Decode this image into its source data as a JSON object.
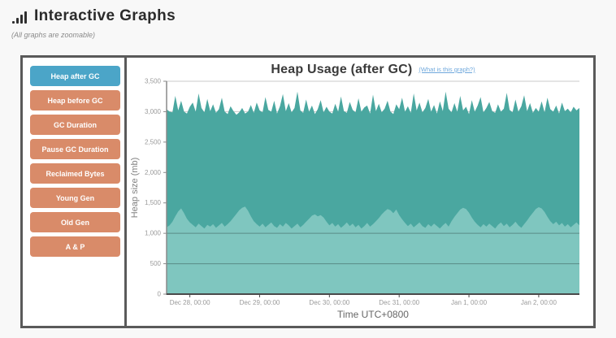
{
  "header": {
    "title": "Interactive Graphs",
    "subtitle": "(All graphs are zoomable)",
    "logo_icon": "bar-chart-icon"
  },
  "sidebar": {
    "buttons": [
      {
        "label": "Heap after GC",
        "active": true
      },
      {
        "label": "Heap before GC",
        "active": false
      },
      {
        "label": "GC Duration",
        "active": false
      },
      {
        "label": "Pause GC Duration",
        "active": false
      },
      {
        "label": "Reclaimed Bytes",
        "active": false
      },
      {
        "label": "Young Gen",
        "active": false
      },
      {
        "label": "Old Gen",
        "active": false
      },
      {
        "label": "A & P",
        "active": false
      }
    ],
    "active_color": "#4ba5c8",
    "inactive_color": "#d98b69"
  },
  "chart_header": {
    "title": "Heap Usage (after GC)",
    "help_link": "(What is this graph?)",
    "link_color": "#6fa8dc"
  },
  "chart_data": {
    "type": "area",
    "title": "Heap Usage (after GC)",
    "xlabel": "Time UTC+0800",
    "ylabel": "Heap size (mb)",
    "ylim": [
      0,
      3500
    ],
    "y_ticks": [
      0,
      500,
      1000,
      1500,
      2000,
      2500,
      3000,
      3500
    ],
    "grid": true,
    "overlay_gridlines": [
      500,
      1000
    ],
    "x_range_hours": [
      -8,
      134
    ],
    "x_ticks": [
      {
        "t": 0,
        "label": "Dec 28, 00:00"
      },
      {
        "t": 24,
        "label": "Dec 29, 00:00"
      },
      {
        "t": 48,
        "label": "Dec 30, 00:00"
      },
      {
        "t": 72,
        "label": "Dec 31, 00:00"
      },
      {
        "t": 96,
        "label": "Jan 1, 00:00"
      },
      {
        "t": 120,
        "label": "Jan 2, 00:00"
      }
    ],
    "series": [
      {
        "name": "heap-after-gc-upper-envelope",
        "color": "#4aa7a0",
        "t_start": -8,
        "t_step": 1,
        "values": [
          3040,
          3000,
          2990,
          3260,
          3020,
          3180,
          3000,
          2970,
          3080,
          3150,
          3000,
          3300,
          3060,
          2990,
          3210,
          3010,
          3120,
          2980,
          3040,
          3230,
          3000,
          2960,
          3090,
          3010,
          2950,
          2990,
          3060,
          2970,
          3000,
          3110,
          2980,
          3150,
          3020,
          2990,
          3240,
          3030,
          3000,
          3180,
          2970,
          3090,
          3290,
          3010,
          3140,
          2990,
          3060,
          3330,
          3020,
          2980,
          3200,
          3000,
          3100,
          2960,
          3040,
          3190,
          2990,
          3080,
          3000,
          2970,
          3130,
          3000,
          3250,
          3010,
          2980,
          3160,
          3030,
          2990,
          3220,
          3000,
          3070,
          3100,
          2970,
          3280,
          3010,
          3130,
          2990,
          3050,
          3180,
          3000,
          2960,
          3120,
          3040,
          3230,
          3000,
          3090,
          2980,
          3300,
          3020,
          3150,
          2990,
          3060,
          3210,
          3000,
          3110,
          2970,
          3170,
          3010,
          3330,
          3050,
          2990,
          3140,
          3000,
          3260,
          3020,
          3080,
          2960,
          3190,
          3000,
          3100,
          3240,
          2990,
          3060,
          3160,
          3010,
          2980,
          3120,
          3000,
          3050,
          3310,
          3030,
          2990,
          3200,
          3000,
          3090,
          3270,
          3010,
          3140,
          2980,
          3060,
          3000,
          3170,
          2990,
          3230,
          3040,
          3000,
          3100,
          2970,
          3150,
          3010,
          3050,
          2990,
          3080,
          3020,
          3060
        ]
      },
      {
        "name": "heap-after-gc-lower-band",
        "color": "#7fc6bf",
        "t_start": -8,
        "t_step": 1,
        "values": [
          1100,
          1130,
          1190,
          1280,
          1360,
          1410,
          1330,
          1240,
          1180,
          1140,
          1100,
          1160,
          1120,
          1080,
          1140,
          1110,
          1150,
          1090,
          1130,
          1170,
          1110,
          1150,
          1200,
          1260,
          1320,
          1380,
          1420,
          1440,
          1370,
          1280,
          1200,
          1150,
          1110,
          1160,
          1100,
          1140,
          1180,
          1120,
          1090,
          1150,
          1110,
          1170,
          1130,
          1080,
          1120,
          1160,
          1100,
          1140,
          1190,
          1240,
          1290,
          1310,
          1280,
          1300,
          1260,
          1190,
          1130,
          1170,
          1110,
          1150,
          1090,
          1130,
          1180,
          1120,
          1160,
          1100,
          1140,
          1080,
          1120,
          1170,
          1110,
          1150,
          1200,
          1250,
          1310,
          1360,
          1400,
          1380,
          1330,
          1390,
          1300,
          1230,
          1170,
          1120,
          1160,
          1100,
          1140,
          1180,
          1120,
          1090,
          1150,
          1110,
          1160,
          1120,
          1080,
          1130,
          1170,
          1110,
          1200,
          1270,
          1330,
          1390,
          1420,
          1400,
          1340,
          1260,
          1190,
          1140,
          1100,
          1150,
          1110,
          1160,
          1120,
          1080,
          1140,
          1180,
          1120,
          1160,
          1100,
          1140,
          1190,
          1130,
          1090,
          1150,
          1210,
          1280,
          1340,
          1400,
          1430,
          1410,
          1350,
          1270,
          1200,
          1150,
          1190,
          1130,
          1170,
          1110,
          1150,
          1100,
          1140,
          1180,
          1130
        ]
      }
    ]
  }
}
